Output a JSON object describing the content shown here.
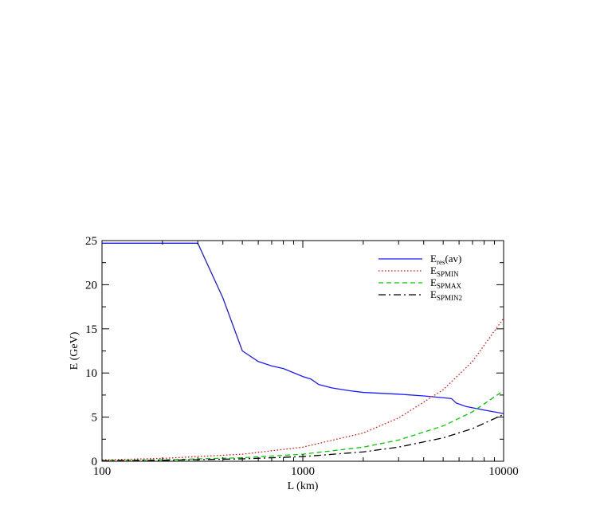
{
  "chart_data": {
    "type": "line",
    "xlabel": "L (km)",
    "ylabel": "E (GeV)",
    "xscale": "log",
    "xlim": [
      100,
      10000
    ],
    "ylim": [
      0,
      25
    ],
    "grid": false,
    "legend_position": "top-right",
    "x_ticks": [
      "100",
      "1000",
      "10000"
    ],
    "y_ticks": [
      "0",
      "5",
      "10",
      "15",
      "20",
      "25"
    ],
    "series": [
      {
        "name": "E_res(av)",
        "legend_main": "E",
        "legend_sub": "res",
        "legend_suffix": "(av)",
        "color": "#1a1aff",
        "dash": "solid",
        "points": [
          [
            100,
            24.7
          ],
          [
            300,
            24.7
          ],
          [
            400,
            18.5
          ],
          [
            500,
            12.5
          ],
          [
            600,
            11.3
          ],
          [
            700,
            10.8
          ],
          [
            800,
            10.5
          ],
          [
            1000,
            9.6
          ],
          [
            1100,
            9.3
          ],
          [
            1200,
            8.7
          ],
          [
            1400,
            8.3
          ],
          [
            1700,
            8.0
          ],
          [
            2000,
            7.8
          ],
          [
            3000,
            7.6
          ],
          [
            4000,
            7.4
          ],
          [
            5000,
            7.2
          ],
          [
            5500,
            7.1
          ],
          [
            5800,
            6.6
          ],
          [
            6500,
            6.2
          ],
          [
            8000,
            5.8
          ],
          [
            10000,
            5.4
          ]
        ]
      },
      {
        "name": "E_SPMIN",
        "legend_main": "E",
        "legend_sub": "SPMIN",
        "legend_suffix": "",
        "color": "#ff0000",
        "dash": "1.5,2.5",
        "points": [
          [
            100,
            0.16
          ],
          [
            200,
            0.32
          ],
          [
            500,
            0.8
          ],
          [
            1000,
            1.6
          ],
          [
            2000,
            3.2
          ],
          [
            3000,
            4.9
          ],
          [
            5000,
            8.1
          ],
          [
            7000,
            11.3
          ],
          [
            10000,
            16.2
          ]
        ]
      },
      {
        "name": "E_SPMAX",
        "legend_main": "E",
        "legend_sub": "SPMAX",
        "legend_suffix": "",
        "color": "#00cc00",
        "dash": "6,4",
        "points": [
          [
            100,
            0.08
          ],
          [
            200,
            0.16
          ],
          [
            500,
            0.4
          ],
          [
            1000,
            0.8
          ],
          [
            2000,
            1.6
          ],
          [
            3000,
            2.4
          ],
          [
            5000,
            4.0
          ],
          [
            7000,
            5.6
          ],
          [
            10000,
            8.0
          ]
        ]
      },
      {
        "name": "E_SPMIN2",
        "legend_main": "E",
        "legend_sub": "SPMIN2",
        "legend_suffix": "",
        "color": "#000000",
        "dash": "9,4,2,4",
        "points": [
          [
            100,
            0.053
          ],
          [
            200,
            0.106
          ],
          [
            500,
            0.27
          ],
          [
            1000,
            0.53
          ],
          [
            2000,
            1.06
          ],
          [
            3000,
            1.6
          ],
          [
            5000,
            2.65
          ],
          [
            7000,
            3.7
          ],
          [
            10000,
            5.3
          ]
        ]
      }
    ]
  }
}
